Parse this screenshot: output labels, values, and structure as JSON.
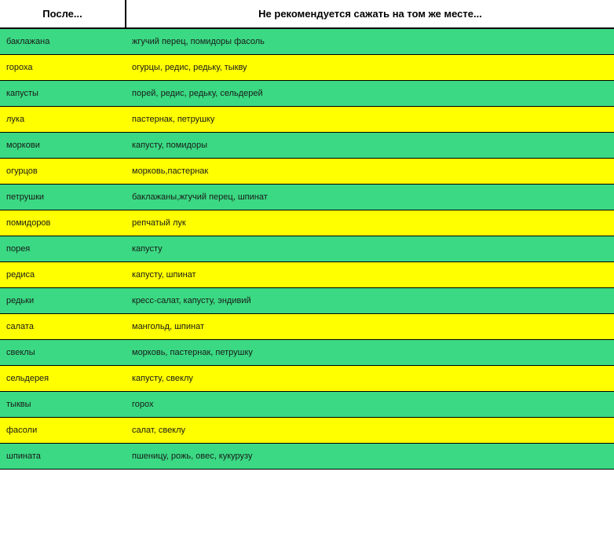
{
  "headers": {
    "left": "После...",
    "right": "Не рекомендуется сажать на том же месте..."
  },
  "colors": {
    "green": "#3bd983",
    "yellow": "#ffff00",
    "header_bg": "#ffffff",
    "border": "#000000"
  },
  "rows": [
    {
      "after": "баклажана",
      "not_recommended": "жгучий перец, помидоры фасоль"
    },
    {
      "after": "гороха",
      "not_recommended": "огурцы, редис, редьку, тыкву"
    },
    {
      "after": "капусты",
      "not_recommended": "порей, редис, редьку, сельдерей"
    },
    {
      "after": "лука",
      "not_recommended": "пастернак, петрушку"
    },
    {
      "after": "моркови",
      "not_recommended": "капусту, помидоры"
    },
    {
      "after": "огурцов",
      "not_recommended": "морковь,пастернак"
    },
    {
      "after": "петрушки",
      "not_recommended": "баклажаны,жгучий перец, шпинат"
    },
    {
      "after": "помидоров",
      "not_recommended": "репчатый лук"
    },
    {
      "after": "порея",
      "not_recommended": "капусту"
    },
    {
      "after": "редиса",
      "not_recommended": "капусту, шпинат"
    },
    {
      "after": "редьки",
      "not_recommended": "кресс-салат, капусту, эндивий"
    },
    {
      "after": "салата",
      "not_recommended": "мангольд, шпинат"
    },
    {
      "after": "свеклы",
      "not_recommended": "морковь, пастернак, петрушку"
    },
    {
      "after": "сельдерея",
      "not_recommended": "капусту, свеклу"
    },
    {
      "after": "тыквы",
      "not_recommended": "горох"
    },
    {
      "after": "фасоли",
      "not_recommended": "салат, свеклу"
    },
    {
      "after": "шпината",
      "not_recommended": "пшеницу, рожь, овес, кукурузу"
    }
  ]
}
